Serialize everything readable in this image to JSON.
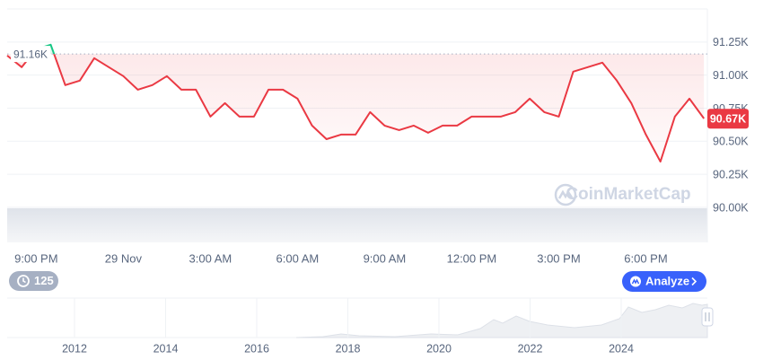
{
  "chart_data": {
    "type": "line",
    "categories": [
      null,
      null,
      "9:00 PM",
      null,
      null,
      null,
      null,
      null,
      "29 Nov",
      null,
      null,
      null,
      null,
      null,
      "3:00 AM",
      null,
      null,
      null,
      null,
      null,
      "6:00 AM",
      null,
      null,
      null,
      null,
      null,
      "9:00 AM",
      null,
      null,
      null,
      null,
      null,
      "12:00 PM",
      null,
      null,
      null,
      null,
      null,
      "3:00 PM",
      null,
      null,
      null,
      null,
      null,
      "6:00 PM",
      null,
      null,
      null,
      null
    ],
    "values": [
      91148,
      91060,
      91196,
      91230,
      90924,
      90958,
      91128,
      91060,
      90992,
      90890,
      90924,
      90992,
      90890,
      90890,
      90686,
      90788,
      90686,
      90686,
      90890,
      90890,
      90822,
      90618,
      90516,
      90550,
      90550,
      90720,
      90618,
      90584,
      90618,
      90564,
      90618,
      90618,
      90686,
      90686,
      90686,
      90720,
      90822,
      90720,
      90686,
      91026,
      91060,
      91094,
      90958,
      90788,
      90550,
      90346,
      90686,
      90822,
      90672
    ],
    "color": "#ea3943",
    "above_color": "#16c784",
    "ylim": [
      89735,
      91500
    ],
    "yticks": [
      {
        "value": 90000,
        "label": "90.00K"
      },
      {
        "value": 90250,
        "label": "90.25K"
      },
      {
        "value": 90500,
        "label": "90.50K"
      },
      {
        "value": 90750,
        "label": "90.75K"
      },
      {
        "value": 91000,
        "label": "91.00K"
      },
      {
        "value": 91250,
        "label": "91.25K"
      }
    ],
    "grid": true,
    "reference": {
      "value": 91160,
      "label": "91.16K"
    },
    "current_price": {
      "value": 90670,
      "label": "90.67K"
    }
  },
  "watermark": "CoinMarketCap",
  "controls": {
    "history_count": "125",
    "analyze": "Analyze"
  },
  "overview": {
    "xticks": [
      2012,
      2014,
      2016,
      2018,
      2020,
      2022,
      2024
    ]
  }
}
